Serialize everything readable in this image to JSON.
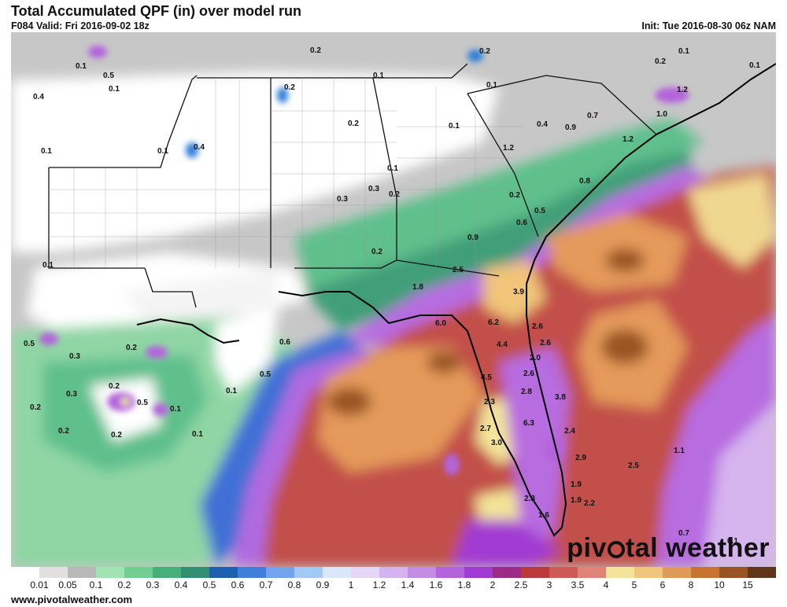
{
  "header": {
    "title": "Total Accumulated QPF (in) over model run",
    "valid": "F084 Valid: Fri 2016-09-02 18z",
    "init": "Init: Tue 2016-08-30 06z NAM"
  },
  "brand": {
    "pre": "piv",
    "post": "tal weather"
  },
  "footer": {
    "url": "www.pivotalweather.com"
  },
  "legend": {
    "ticks": [
      "0.01",
      "0.05",
      "0.1",
      "0.2",
      "0.3",
      "0.4",
      "0.5",
      "0.6",
      "0.7",
      "0.8",
      "0.9",
      "1",
      "1.2",
      "1.4",
      "1.6",
      "1.8",
      "2",
      "2.5",
      "3",
      "3.5",
      "4",
      "5",
      "6",
      "8",
      "10",
      "15"
    ],
    "colors": [
      "#ffffff",
      "#e0e0e0",
      "#b8b8b8",
      "#9fe3b0",
      "#6fcf90",
      "#45b07a",
      "#2f8f70",
      "#1d5fb0",
      "#3f7fd8",
      "#6fa4ee",
      "#a3c8f5",
      "#d9e6fb",
      "#e6d6f6",
      "#d4b3ee",
      "#c38de6",
      "#b463dc",
      "#a23bd2",
      "#9c2a86",
      "#b83a3a",
      "#cc5a55",
      "#e0817a",
      "#f3e49a",
      "#f0c479",
      "#e09a56",
      "#c8742d",
      "#9a5424",
      "#5f361a"
    ]
  },
  "map_labels": [
    {
      "t": "0.2"
    },
    {
      "t": "0.1"
    },
    {
      "t": "0.1"
    },
    {
      "t": "0.5"
    },
    {
      "t": "0.1"
    },
    {
      "t": "0.4"
    },
    {
      "t": "0.2"
    },
    {
      "t": "0.2"
    },
    {
      "t": "0.1"
    },
    {
      "t": "0.1"
    },
    {
      "t": "0.2"
    },
    {
      "t": "0.1"
    },
    {
      "t": "1.2"
    },
    {
      "t": "1.0"
    },
    {
      "t": "0.4"
    },
    {
      "t": "0.9"
    },
    {
      "t": "0.7"
    },
    {
      "t": "0.1"
    },
    {
      "t": "0.1"
    },
    {
      "t": "0.4"
    },
    {
      "t": "0.2"
    },
    {
      "t": "1.2"
    },
    {
      "t": "1.2"
    },
    {
      "t": "0.1"
    },
    {
      "t": "0.1"
    },
    {
      "t": "0.3"
    },
    {
      "t": "0.3"
    },
    {
      "t": "0.2"
    },
    {
      "t": "0.8"
    },
    {
      "t": "0.2"
    },
    {
      "t": "0.5"
    },
    {
      "t": "0.6"
    },
    {
      "t": "0.9"
    },
    {
      "t": "0.2"
    },
    {
      "t": "2.5"
    },
    {
      "t": "1.8"
    },
    {
      "t": "3.9"
    },
    {
      "t": "0.1"
    },
    {
      "t": "0.5"
    },
    {
      "t": "0.2"
    },
    {
      "t": "0.3"
    },
    {
      "t": "0.6"
    },
    {
      "t": "0.5"
    },
    {
      "t": "6.0"
    },
    {
      "t": "6.2"
    },
    {
      "t": "2.6"
    },
    {
      "t": "4.4"
    },
    {
      "t": "2.6"
    },
    {
      "t": "2.0"
    },
    {
      "t": "0.3"
    },
    {
      "t": "0.2"
    },
    {
      "t": "0.5"
    },
    {
      "t": "0.1"
    },
    {
      "t": "0.2"
    },
    {
      "t": "0.2"
    },
    {
      "t": "0.2"
    },
    {
      "t": "0.1"
    },
    {
      "t": "0.1"
    },
    {
      "t": "4.5"
    },
    {
      "t": "2.6"
    },
    {
      "t": "2.8"
    },
    {
      "t": "3.8"
    },
    {
      "t": "2.3"
    },
    {
      "t": "6.3"
    },
    {
      "t": "2.7"
    },
    {
      "t": "3.0"
    },
    {
      "t": "2.4"
    },
    {
      "t": "2.9"
    },
    {
      "t": "2.5"
    },
    {
      "t": "1.1"
    },
    {
      "t": "1.9"
    },
    {
      "t": "2.3"
    },
    {
      "t": "1.9"
    },
    {
      "t": "2.2"
    },
    {
      "t": "1.6"
    },
    {
      "t": "0.7"
    },
    {
      "t": "0.1"
    }
  ]
}
